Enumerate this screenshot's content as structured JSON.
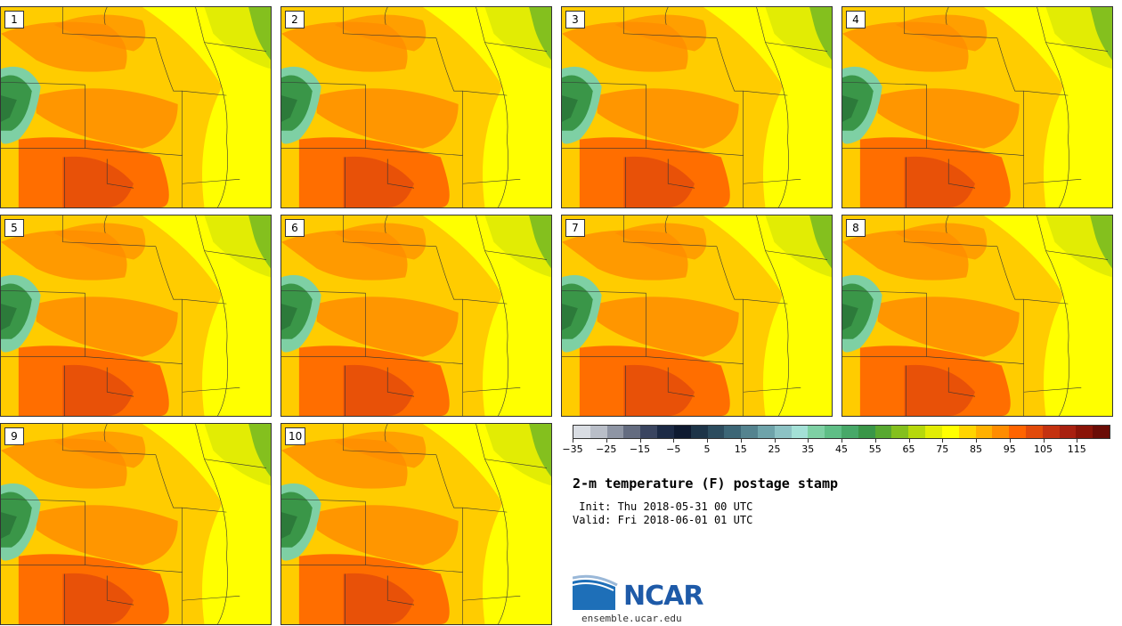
{
  "members": [
    "1",
    "2",
    "3",
    "4",
    "5",
    "6",
    "7",
    "8",
    "9",
    "10"
  ],
  "colorbar": {
    "colors": [
      "#d9dde3",
      "#b9bec8",
      "#8e95a4",
      "#646c80",
      "#3a4560",
      "#1c2a45",
      "#0e1a30",
      "#1d3448",
      "#2c4c5e",
      "#3c6676",
      "#54838f",
      "#6ea3aa",
      "#8cc2c4",
      "#a3e0d6",
      "#7ed0a4",
      "#5fbe86",
      "#47a868",
      "#3a9648",
      "#58a830",
      "#84c01e",
      "#b6d80c",
      "#e2ec04",
      "#ffff00",
      "#ffd400",
      "#ffb000",
      "#ff8c00",
      "#ff6400",
      "#e24a0a",
      "#c43210",
      "#a82010",
      "#8a1408",
      "#6a0c06"
    ],
    "tick_labels": [
      "−35",
      "−25",
      "−15",
      "−5",
      "5",
      "15",
      "25",
      "35",
      "45",
      "55",
      "65",
      "75",
      "85",
      "95",
      "105",
      "115"
    ]
  },
  "title": "2-m temperature (F) postage stamp",
  "init": " Init: Thu 2018-05-31 00 UTC",
  "valid": "Valid: Fri 2018-06-01 01 UTC",
  "logo": {
    "name": "NCAR",
    "url": "ensemble.ucar.edu"
  }
}
